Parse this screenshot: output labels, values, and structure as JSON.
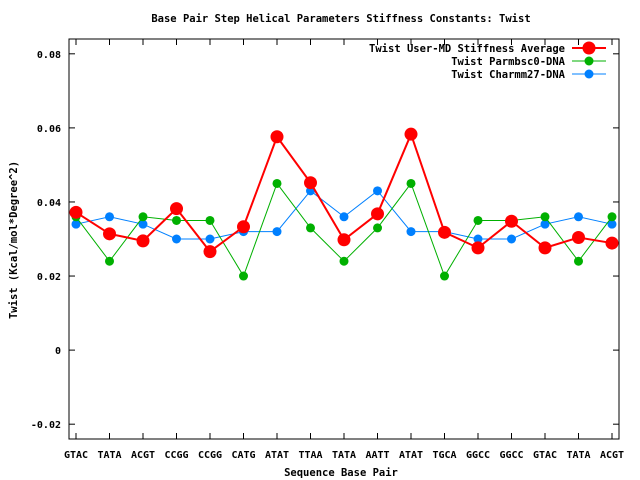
{
  "chart_data": {
    "type": "line",
    "title": "Base Pair Step Helical Parameters Stiffness Constants: Twist",
    "xlabel": "Sequence Base Pair",
    "ylabel": "Twist (Kcal/mol*Degree^2)",
    "categories": [
      "GTAC",
      "TATA",
      "ACGT",
      "CCGG",
      "CCGG",
      "CATG",
      "ATAT",
      "TTAA",
      "TATA",
      "AATT",
      "ATAT",
      "TGCA",
      "GGCC",
      "GGCC",
      "GTAC",
      "TATA",
      "ACGT"
    ],
    "ylim": [
      -0.024,
      0.084
    ],
    "yticks": [
      "-0.02",
      "0",
      "0.02",
      "0.04",
      "0.06",
      "0.08"
    ],
    "grid": false,
    "legend_position": "top-right",
    "series": [
      {
        "name": "Twist User-MD Stiffness Average",
        "color": "#ff0000",
        "values": [
          0.0372,
          0.0314,
          0.0295,
          0.0382,
          0.0266,
          0.0333,
          0.0576,
          0.0452,
          0.0298,
          0.0368,
          0.0583,
          0.0318,
          0.0276,
          0.0348,
          0.0276,
          0.0304,
          0.0289
        ]
      },
      {
        "name": "Twist Parmbsc0-DNA",
        "color": "#00b000",
        "values": [
          0.036,
          0.024,
          0.036,
          0.035,
          0.035,
          0.02,
          0.045,
          0.033,
          0.024,
          0.033,
          0.045,
          0.02,
          0.035,
          0.035,
          0.036,
          0.024,
          0.036
        ]
      },
      {
        "name": "Twist Charmm27-DNA",
        "color": "#0080ff",
        "values": [
          0.034,
          0.036,
          0.034,
          0.03,
          0.03,
          0.032,
          0.032,
          0.043,
          0.036,
          0.043,
          0.032,
          0.032,
          0.03,
          0.03,
          0.034,
          0.036,
          0.034
        ]
      }
    ]
  }
}
